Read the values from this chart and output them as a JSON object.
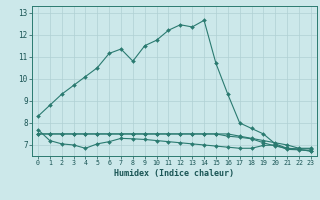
{
  "title": "",
  "xlabel": "Humidex (Indice chaleur)",
  "background_color": "#cce8ea",
  "grid_color": "#b0d0d4",
  "line_color": "#2a7a70",
  "xlim": [
    -0.5,
    23.5
  ],
  "ylim": [
    6.5,
    13.3
  ],
  "xticks": [
    0,
    1,
    2,
    3,
    4,
    5,
    6,
    7,
    8,
    9,
    10,
    11,
    12,
    13,
    14,
    15,
    16,
    17,
    18,
    19,
    20,
    21,
    22,
    23
  ],
  "yticks": [
    7,
    8,
    9,
    10,
    11,
    12,
    13
  ],
  "series": [
    [
      8.3,
      8.8,
      9.3,
      9.7,
      10.1,
      10.5,
      11.15,
      11.35,
      10.8,
      11.5,
      11.75,
      12.2,
      12.45,
      12.35,
      12.65,
      10.7,
      9.3,
      8.0,
      7.75,
      7.5,
      7.05,
      6.85,
      6.8,
      6.72
    ],
    [
      7.5,
      7.5,
      7.5,
      7.5,
      7.5,
      7.5,
      7.5,
      7.5,
      7.5,
      7.5,
      7.5,
      7.5,
      7.5,
      7.5,
      7.5,
      7.5,
      7.5,
      7.4,
      7.3,
      7.2,
      7.1,
      7.0,
      6.85,
      6.85
    ],
    [
      7.7,
      7.2,
      7.05,
      7.0,
      6.85,
      7.05,
      7.15,
      7.3,
      7.28,
      7.25,
      7.2,
      7.15,
      7.1,
      7.05,
      7.0,
      6.95,
      6.9,
      6.85,
      6.85,
      6.98,
      7.0,
      6.8,
      6.78,
      6.73
    ],
    [
      7.5,
      7.5,
      7.5,
      7.5,
      7.5,
      7.5,
      7.5,
      7.5,
      7.5,
      7.5,
      7.5,
      7.5,
      7.5,
      7.5,
      7.5,
      7.5,
      7.4,
      7.35,
      7.28,
      7.1,
      6.95,
      6.85,
      6.82,
      6.82
    ]
  ]
}
